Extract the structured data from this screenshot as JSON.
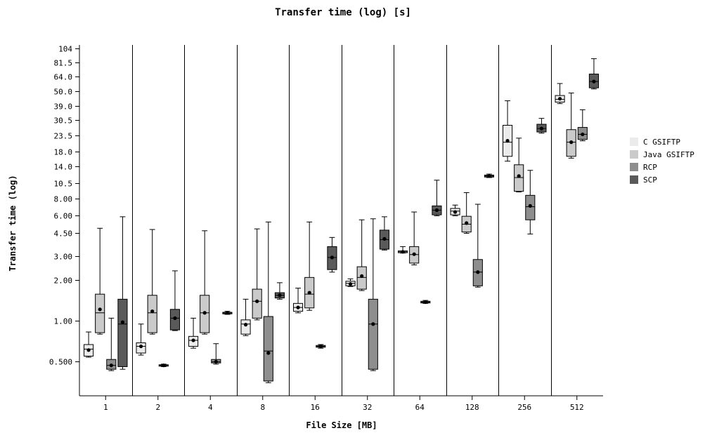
{
  "chart_data": {
    "type": "box",
    "title": "Transfer time (log) [s]",
    "xlabel": "File Size [MB]",
    "ylabel": "Transfer time (log)",
    "y_scale": "log",
    "yticks": [
      "104",
      "81.5",
      "64.0",
      "50.0",
      "39.0",
      "30.5",
      "23.5",
      "18.0",
      "14.0",
      "10.5",
      "8.00",
      "6.00",
      "4.50",
      "3.00",
      "2.00",
      "1.00",
      "0.500"
    ],
    "categories": [
      "1",
      "2",
      "4",
      "8",
      "16",
      "32",
      "64",
      "128",
      "256",
      "512"
    ],
    "legend_position": "right",
    "grid": "vertical separators between categories",
    "series": [
      {
        "name": "C GSIFTP",
        "color": "#ebebeb",
        "boxes": [
          {
            "min": 0.54,
            "q1": 0.55,
            "median": 0.62,
            "q3": 0.67,
            "max": 0.83,
            "mean": 0.61
          },
          {
            "min": 0.56,
            "q1": 0.58,
            "median": 0.65,
            "q3": 0.69,
            "max": 0.95,
            "mean": 0.65
          },
          {
            "min": 0.63,
            "q1": 0.65,
            "median": 0.72,
            "q3": 0.77,
            "max": 1.05,
            "mean": 0.72
          },
          {
            "min": 0.78,
            "q1": 0.8,
            "median": 0.95,
            "q3": 1.02,
            "max": 1.45,
            "mean": 0.94
          },
          {
            "min": 1.15,
            "q1": 1.18,
            "median": 1.26,
            "q3": 1.35,
            "max": 1.75,
            "mean": 1.26
          },
          {
            "min": 1.8,
            "q1": 1.82,
            "median": 1.9,
            "q3": 1.97,
            "max": 2.05,
            "mean": 1.88
          },
          {
            "min": 3.18,
            "q1": 3.2,
            "median": 3.25,
            "q3": 3.3,
            "max": 3.55,
            "mean": 3.25
          },
          {
            "min": 6.0,
            "q1": 6.1,
            "median": 6.5,
            "q3": 6.8,
            "max": 7.2,
            "mean": 6.4
          },
          {
            "min": 15.2,
            "q1": 16.5,
            "median": 21.0,
            "q3": 28.0,
            "max": 42.5,
            "mean": 21.5
          },
          {
            "min": 40.5,
            "q1": 41.5,
            "median": 43.5,
            "q3": 46.5,
            "max": 57.0,
            "mean": 44.0
          }
        ]
      },
      {
        "name": "Java GSIFTP",
        "color": "#cacaca",
        "boxes": [
          {
            "min": 0.8,
            "q1": 0.82,
            "median": 1.15,
            "q3": 1.58,
            "max": 4.85,
            "mean": 1.22
          },
          {
            "min": 0.8,
            "q1": 0.82,
            "median": 1.15,
            "q3": 1.55,
            "max": 4.75,
            "mean": 1.18
          },
          {
            "min": 0.8,
            "q1": 0.82,
            "median": 1.15,
            "q3": 1.55,
            "max": 4.65,
            "mean": 1.15
          },
          {
            "min": 1.02,
            "q1": 1.05,
            "median": 1.4,
            "q3": 1.72,
            "max": 4.8,
            "mean": 1.4
          },
          {
            "min": 1.2,
            "q1": 1.25,
            "median": 1.58,
            "q3": 2.1,
            "max": 5.4,
            "mean": 1.62
          },
          {
            "min": 1.68,
            "q1": 1.72,
            "median": 2.1,
            "q3": 2.52,
            "max": 5.6,
            "mean": 2.15
          },
          {
            "min": 2.6,
            "q1": 2.68,
            "median": 3.1,
            "q3": 3.55,
            "max": 6.4,
            "mean": 3.12
          },
          {
            "min": 4.45,
            "q1": 4.55,
            "median": 5.2,
            "q3": 5.95,
            "max": 8.9,
            "mean": 5.3
          },
          {
            "min": 9.0,
            "q1": 9.1,
            "median": 11.5,
            "q3": 14.3,
            "max": 22.5,
            "mean": 11.8
          },
          {
            "min": 16.0,
            "q1": 16.5,
            "median": 21.0,
            "q3": 26.0,
            "max": 48.5,
            "mean": 21.0
          }
        ]
      },
      {
        "name": "RCP",
        "color": "#8e8e8e",
        "boxes": [
          {
            "min": 0.43,
            "q1": 0.44,
            "median": 0.47,
            "q3": 0.52,
            "max": 1.05,
            "mean": 0.47
          },
          {
            "min": 0.46,
            "q1": 0.465,
            "median": 0.47,
            "q3": 0.475,
            "max": 0.48,
            "mean": 0.47
          },
          {
            "min": 0.48,
            "q1": 0.49,
            "median": 0.5,
            "q3": 0.52,
            "max": 0.68,
            "mean": 0.5
          },
          {
            "min": 0.35,
            "q1": 0.36,
            "median": 0.6,
            "q3": 1.08,
            "max": 5.4,
            "mean": 0.58
          },
          {
            "min": 0.63,
            "q1": 0.64,
            "median": 0.65,
            "q3": 0.66,
            "max": 0.67,
            "mean": 0.65
          },
          {
            "min": 0.43,
            "q1": 0.44,
            "median": 0.95,
            "q3": 1.45,
            "max": 5.7,
            "mean": 0.95
          },
          {
            "min": 1.35,
            "q1": 1.36,
            "median": 1.38,
            "q3": 1.4,
            "max": 1.42,
            "mean": 1.38
          },
          {
            "min": 1.78,
            "q1": 1.82,
            "median": 2.3,
            "q3": 2.85,
            "max": 7.3,
            "mean": 2.3
          },
          {
            "min": 4.4,
            "q1": 5.6,
            "median": 7.0,
            "q3": 8.5,
            "max": 13.0,
            "mean": 7.1
          },
          {
            "min": 21.5,
            "q1": 22.0,
            "median": 24.0,
            "q3": 27.0,
            "max": 36.5,
            "mean": 24.0
          }
        ]
      },
      {
        "name": "SCP",
        "color": "#5a5a5a",
        "boxes": [
          {
            "min": 0.44,
            "q1": 0.46,
            "median": 0.95,
            "q3": 1.45,
            "max": 5.9,
            "mean": 0.98
          },
          {
            "min": 0.85,
            "q1": 0.86,
            "median": 1.05,
            "q3": 1.22,
            "max": 2.35,
            "mean": 1.05
          },
          {
            "min": 1.12,
            "q1": 1.13,
            "median": 1.15,
            "q3": 1.16,
            "max": 1.18,
            "mean": 1.15
          },
          {
            "min": 1.45,
            "q1": 1.48,
            "median": 1.55,
            "q3": 1.62,
            "max": 1.92,
            "mean": 1.55
          },
          {
            "min": 2.3,
            "q1": 2.4,
            "median": 2.95,
            "q3": 3.55,
            "max": 4.15,
            "mean": 2.95
          },
          {
            "min": 3.35,
            "q1": 3.4,
            "median": 4.0,
            "q3": 4.7,
            "max": 5.9,
            "mean": 4.05
          },
          {
            "min": 6.0,
            "q1": 6.1,
            "median": 6.6,
            "q3": 7.1,
            "max": 11.0,
            "mean": 6.6
          },
          {
            "min": 11.5,
            "q1": 11.6,
            "median": 11.8,
            "q3": 12.0,
            "max": 12.2,
            "mean": 11.8
          },
          {
            "min": 24.5,
            "q1": 25.0,
            "median": 26.5,
            "q3": 28.5,
            "max": 31.5,
            "mean": 26.5
          },
          {
            "min": 52.0,
            "q1": 53.0,
            "median": 59.0,
            "q3": 67.0,
            "max": 87.0,
            "mean": 59.0
          }
        ]
      }
    ]
  }
}
